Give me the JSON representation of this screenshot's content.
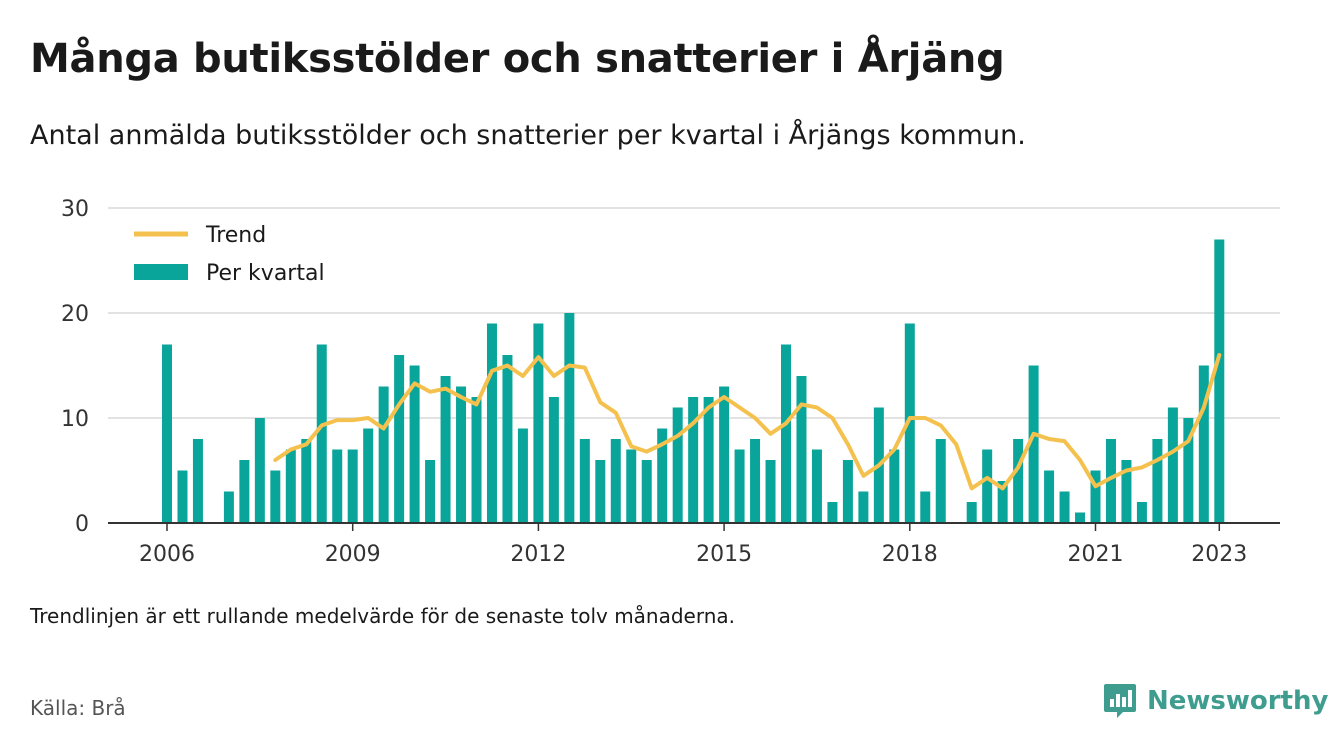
{
  "title": "Många butiksstölder och snatterier i Årjäng",
  "subtitle": "Antal anmälda butiksstölder och snatterier per kvartal i Årjängs kommun.",
  "note": "Trendlinjen är ett rullande medelvärde för de senaste tolv månaderna.",
  "source": "Källa: Brå",
  "brand": {
    "name": "Newsworthy",
    "icon": "newsworthy-chart-bubble-icon",
    "color": "#3e9d8f"
  },
  "colors": {
    "bar": "#0aa59a",
    "trend": "#f5c14e",
    "grid": "#d9d9d9",
    "axis": "#333333"
  },
  "chart_data": {
    "type": "bar",
    "title": "Många butiksstölder och snatterier i Årjäng",
    "ylim": [
      0,
      30
    ],
    "yticks": [
      0,
      10,
      20,
      30
    ],
    "xticks": [
      {
        "label": "2006",
        "x": 2006.0
      },
      {
        "label": "2009",
        "x": 2009.0
      },
      {
        "label": "2012",
        "x": 2012.0
      },
      {
        "label": "2015",
        "x": 2015.0
      },
      {
        "label": "2018",
        "x": 2018.0
      },
      {
        "label": "2021",
        "x": 2021.0
      },
      {
        "label": "2023",
        "x": 2023.0
      }
    ],
    "grid": true,
    "legend": {
      "placement": "top-left",
      "items": [
        {
          "label": "Trend",
          "kind": "line"
        },
        {
          "label": "Per kvartal",
          "kind": "bar"
        }
      ]
    },
    "series": [
      {
        "name": "Per kvartal",
        "type": "bar",
        "x": [
          2006.0,
          2006.25,
          2006.5,
          2006.75,
          2007.0,
          2007.25,
          2007.5,
          2007.75,
          2008.0,
          2008.25,
          2008.5,
          2008.75,
          2009.0,
          2009.25,
          2009.5,
          2009.75,
          2010.0,
          2010.25,
          2010.5,
          2010.75,
          2011.0,
          2011.25,
          2011.5,
          2011.75,
          2012.0,
          2012.25,
          2012.5,
          2012.75,
          2013.0,
          2013.25,
          2013.5,
          2013.75,
          2014.0,
          2014.25,
          2014.5,
          2014.75,
          2015.0,
          2015.25,
          2015.5,
          2015.75,
          2016.0,
          2016.25,
          2016.5,
          2016.75,
          2017.0,
          2017.25,
          2017.5,
          2017.75,
          2018.0,
          2018.25,
          2018.5,
          2018.75,
          2019.0,
          2019.25,
          2019.5,
          2019.75,
          2020.0,
          2020.25,
          2020.5,
          2020.75,
          2021.0,
          2021.25,
          2021.5,
          2021.75,
          2022.0,
          2022.25,
          2022.5,
          2022.75,
          2023.0
        ],
        "values": [
          17,
          5,
          8,
          0,
          3,
          6,
          10,
          5,
          7,
          8,
          17,
          7,
          7,
          9,
          13,
          16,
          15,
          6,
          14,
          13,
          12,
          19,
          16,
          9,
          19,
          12,
          20,
          8,
          6,
          8,
          7,
          6,
          9,
          11,
          12,
          12,
          13,
          7,
          8,
          6,
          17,
          14,
          7,
          2,
          6,
          3,
          11,
          7,
          19,
          3,
          8,
          0,
          2,
          7,
          4,
          8,
          15,
          5,
          3,
          1,
          5,
          8,
          6,
          2,
          8,
          11,
          10,
          15,
          27
        ]
      },
      {
        "name": "Trend",
        "type": "line",
        "x": [
          2007.75,
          2008.0,
          2008.25,
          2008.5,
          2008.75,
          2009.0,
          2009.25,
          2009.5,
          2009.75,
          2010.0,
          2010.25,
          2010.5,
          2010.75,
          2011.0,
          2011.25,
          2011.5,
          2011.75,
          2012.0,
          2012.25,
          2012.5,
          2012.75,
          2013.0,
          2013.25,
          2013.5,
          2013.75,
          2014.0,
          2014.25,
          2014.5,
          2014.75,
          2015.0,
          2015.25,
          2015.5,
          2015.75,
          2016.0,
          2016.25,
          2016.5,
          2016.75,
          2017.0,
          2017.25,
          2017.5,
          2017.75,
          2018.0,
          2018.25,
          2018.5,
          2018.75,
          2019.0,
          2019.25,
          2019.5,
          2019.75,
          2020.0,
          2020.25,
          2020.5,
          2020.75,
          2021.0,
          2021.25,
          2021.5,
          2021.75,
          2022.0,
          2022.25,
          2022.5,
          2022.75,
          2023.0
        ],
        "values": [
          6.0,
          7.0,
          7.5,
          9.3,
          9.8,
          9.8,
          10.0,
          9.0,
          11.3,
          13.3,
          12.5,
          12.8,
          12.0,
          11.3,
          14.5,
          15.0,
          14.0,
          15.8,
          14.0,
          15.0,
          14.8,
          11.5,
          10.5,
          7.3,
          6.8,
          7.5,
          8.3,
          9.5,
          11.0,
          12.0,
          11.0,
          10.0,
          8.5,
          9.5,
          11.3,
          11.0,
          10.0,
          7.5,
          4.5,
          5.5,
          7.0,
          10.0,
          10.0,
          9.3,
          7.5,
          3.3,
          4.3,
          3.3,
          5.3,
          8.5,
          8.0,
          7.8,
          6.0,
          3.5,
          4.3,
          5.0,
          5.3,
          6.0,
          6.8,
          7.8,
          11.0,
          16.0
        ]
      }
    ]
  }
}
